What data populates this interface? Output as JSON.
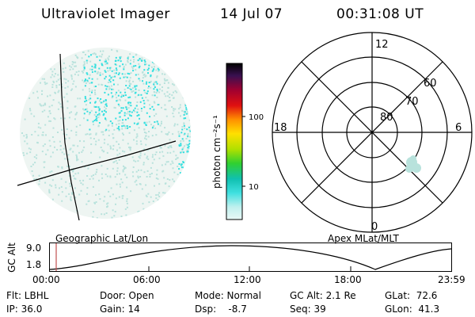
{
  "header": {
    "title": "Ultraviolet Imager",
    "date": "14 Jul 07",
    "time": "00:31:08 UT"
  },
  "colorbar": {
    "unit_label": "photon cm⁻²s⁻¹",
    "ticks": [
      "100",
      "10"
    ]
  },
  "polar": {
    "mlt_labels": [
      "12",
      "18",
      "6",
      "0"
    ],
    "lat_labels": [
      "60",
      "70",
      "80"
    ]
  },
  "timeline": {
    "y_axis_label": "GC Alt",
    "y_ticks": [
      "9.0",
      "1.8"
    ],
    "left_label": "Geographic Lat/Lon",
    "right_label": "Apex MLat/MLT",
    "x_ticks": [
      "00:00",
      "06:00",
      "12:00",
      "18:00",
      "23:59"
    ]
  },
  "info": {
    "filter": "Flt: LBHL",
    "ip": "IP: 36.0",
    "door": "Door: Open",
    "gain": "Gain: 14",
    "mode": "Mode: Normal",
    "dsp": "Dsp:    -8.7",
    "gc_alt": "GC Alt: 2.1 Re",
    "seq": "Seq: 39",
    "glat": "GLat:  72.6",
    "glon": "GLon:  41.3"
  },
  "colors": {
    "background": "#ffffff",
    "foreground": "#000000",
    "emission_faint": "#b8e2dc",
    "emission_bright": "#33e0e0",
    "time_marker": "#c05050"
  }
}
